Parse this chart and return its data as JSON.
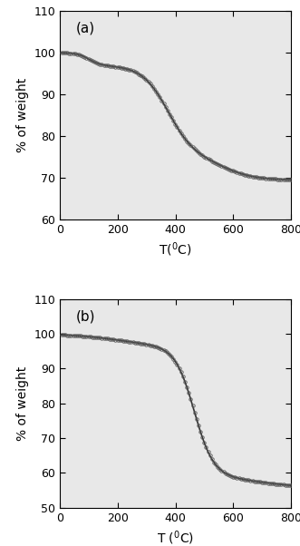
{
  "panel_a": {
    "label": "(a)",
    "ylim": [
      60,
      110
    ],
    "yticks": [
      60,
      70,
      80,
      90,
      100,
      110
    ],
    "xlim": [
      0,
      800
    ],
    "xticks": [
      0,
      200,
      400,
      600,
      800
    ],
    "ylabel": "% of weight",
    "xlabel": "T($^0$C)"
  },
  "panel_b": {
    "label": "(b)",
    "ylim": [
      50,
      110
    ],
    "yticks": [
      50,
      60,
      70,
      80,
      90,
      100,
      110
    ],
    "xlim": [
      0,
      800
    ],
    "xticks": [
      0,
      200,
      400,
      600,
      800
    ],
    "ylabel": "% of weight",
    "xlabel": "T ($^0$C)"
  },
  "line_color": "#333333",
  "marker_facecolor": "none",
  "marker_edgecolor": "#555555",
  "bg_color": "#e8e8e8",
  "fig_bg": "#ffffff",
  "marker_size": 2.5,
  "marker_edge_width": 0.6,
  "line_width": 1.2,
  "n_markers_a": 120,
  "n_markers_b": 120
}
